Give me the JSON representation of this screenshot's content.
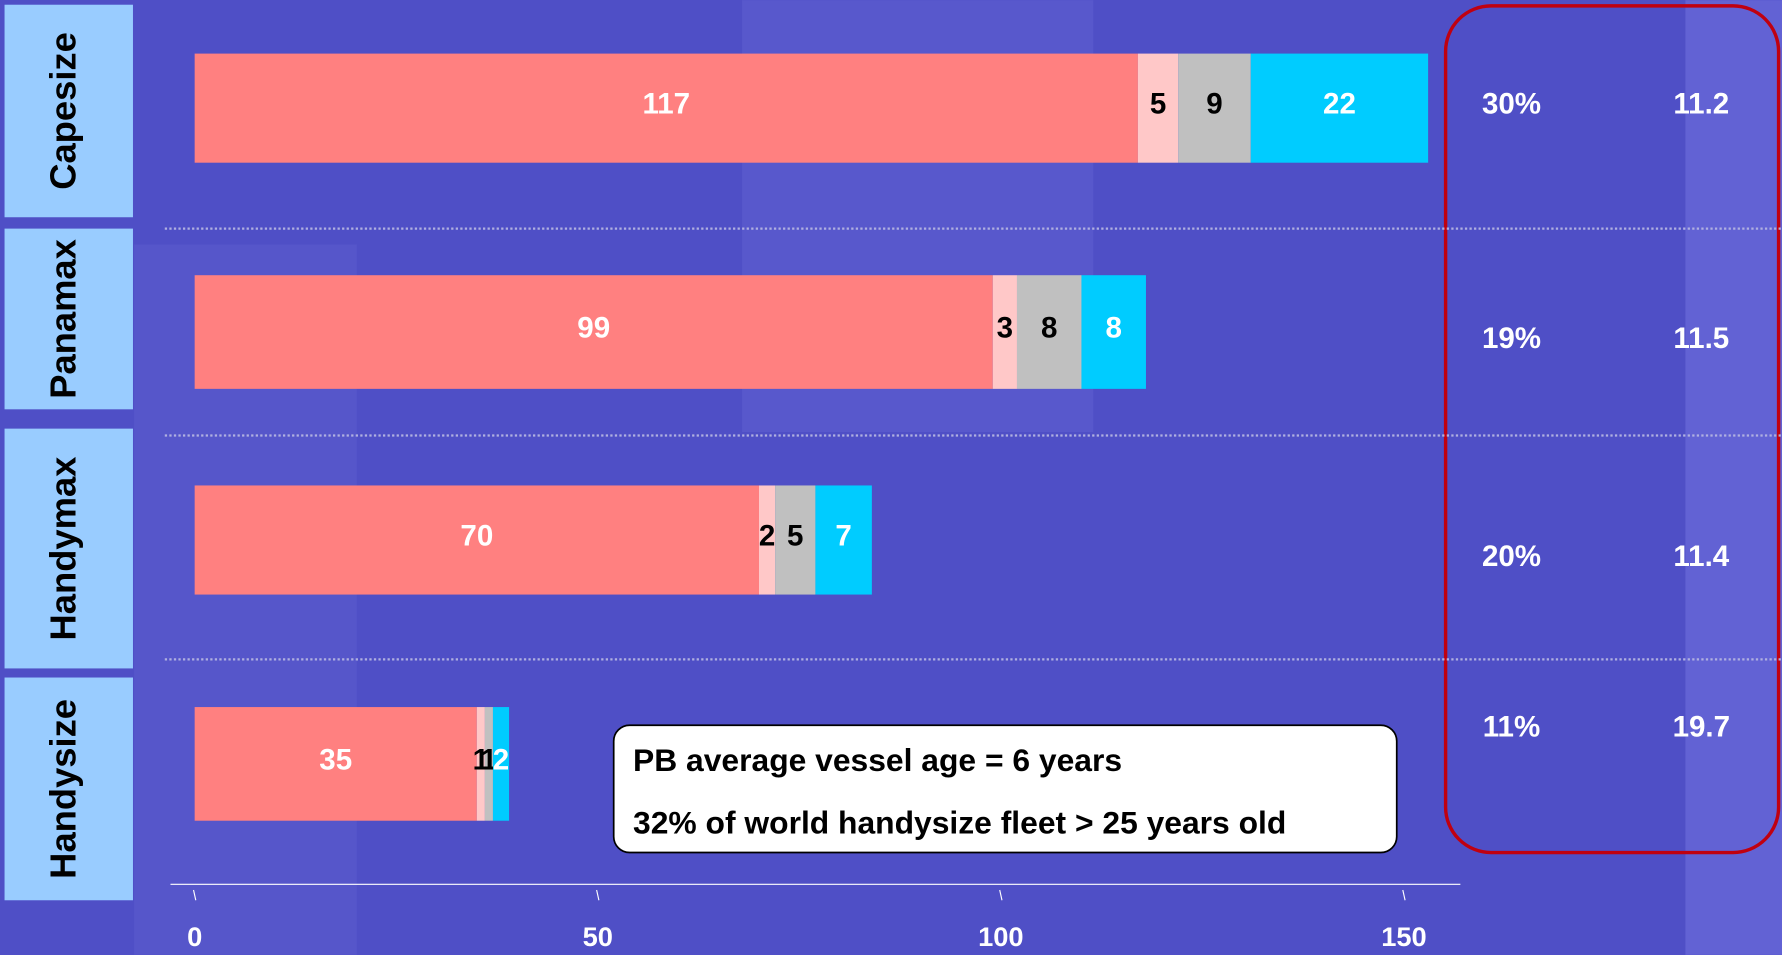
{
  "chart_data": {
    "type": "stacked_bar_horizontal",
    "categories": [
      "Capesize",
      "Panamax",
      "Handymax",
      "Handysize"
    ],
    "series": [
      {
        "color": "#ff8080",
        "values": [
          117,
          99,
          70,
          35
        ]
      },
      {
        "color": "#ffc8c8",
        "values": [
          5,
          3,
          2,
          1
        ]
      },
      {
        "color": "#c0c0c0",
        "values": [
          9,
          8,
          5,
          1
        ]
      },
      {
        "color": "#00ccff",
        "values": [
          22,
          8,
          7,
          2
        ]
      }
    ],
    "xlim": [
      -3,
      157
    ],
    "xticks": [
      0,
      50,
      100,
      150
    ],
    "share": {
      "values": [
        30,
        19,
        20,
        11
      ],
      "value_labels": [
        "30%",
        "19%",
        "20%",
        "11%"
      ]
    },
    "age": [
      11.2,
      11.5,
      11.4,
      19.7
    ],
    "annotations": [
      "PB average vessel age = 6 years",
      "32% of world handysize fleet > 25 years old"
    ]
  }
}
